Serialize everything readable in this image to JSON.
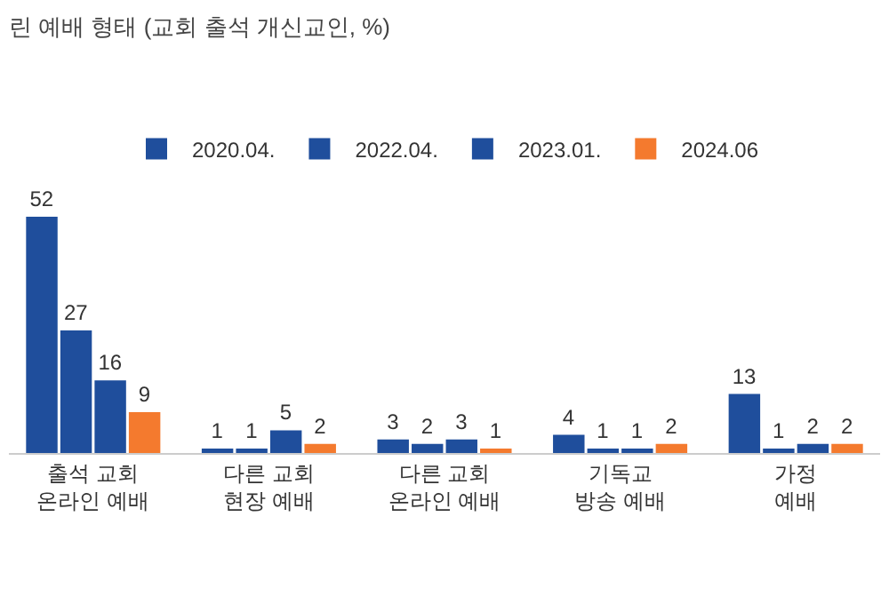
{
  "chart_data": {
    "type": "bar",
    "title": "린 예배 형태 (교회 출석 개신교인, %)",
    "categories": [
      "출석 교회\n온라인 예배",
      "다른 교회\n현장 예배",
      "다른 교회\n온라인 예배",
      "기독교\n방송 예배",
      "가정\n예배"
    ],
    "series": [
      {
        "name": "2020.04.",
        "color": "#1f4e9c",
        "values": [
          52,
          1,
          3,
          4,
          13
        ]
      },
      {
        "name": "2022.04.",
        "color": "#1f4e9c",
        "values": [
          27,
          1,
          2,
          1,
          1
        ]
      },
      {
        "name": "2023.01.",
        "color": "#1f4e9c",
        "values": [
          16,
          5,
          3,
          1,
          2
        ]
      },
      {
        "name": "2024.06",
        "color": "#f47a2e",
        "values": [
          9,
          2,
          1,
          2,
          2
        ]
      }
    ],
    "data_labels": true,
    "legend": "top",
    "grid": false
  }
}
